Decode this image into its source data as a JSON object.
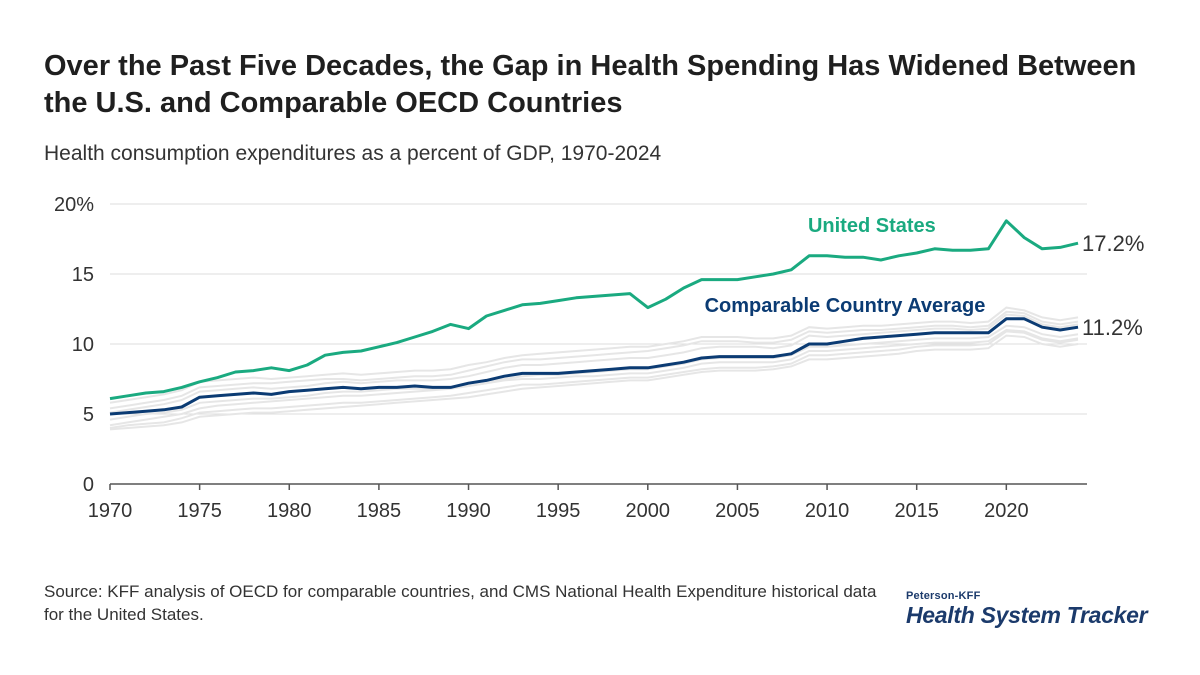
{
  "header": {
    "title": "Over the Past Five Decades, the Gap in Health Spending Has Widened Between the U.S. and Comparable OECD Countries",
    "subtitle": "Health consumption expenditures as a percent of GDP, 1970-2024"
  },
  "footer": {
    "source": "Source: KFF analysis of OECD for comparable countries, and CMS National Health Expenditure historical data for the United States.",
    "logo_top": "Peterson-KFF",
    "logo_main": "Health System Tracker"
  },
  "colors": {
    "us": "#1aaa80",
    "comparable": "#0b3b73",
    "background_lines": "#e6e6e6",
    "grid": "#dddddd",
    "axis": "#555555"
  },
  "chart_data": {
    "type": "line",
    "xlim": [
      1970,
      2024.5
    ],
    "ylim": [
      0,
      20
    ],
    "x_ticks": [
      1970,
      1975,
      1980,
      1985,
      1990,
      1995,
      2000,
      2005,
      2010,
      2015,
      2020
    ],
    "y_ticks": [
      0,
      5,
      10,
      15,
      20
    ],
    "y_tick_labels": [
      "0",
      "5",
      "10",
      "15",
      "20%"
    ],
    "grid": "horizontal",
    "x": [
      1970,
      1971,
      1972,
      1973,
      1974,
      1975,
      1976,
      1977,
      1978,
      1979,
      1980,
      1981,
      1982,
      1983,
      1984,
      1985,
      1986,
      1987,
      1988,
      1989,
      1990,
      1991,
      1992,
      1993,
      1994,
      1995,
      1996,
      1997,
      1998,
      1999,
      2000,
      2001,
      2002,
      2003,
      2004,
      2005,
      2006,
      2007,
      2008,
      2009,
      2010,
      2011,
      2012,
      2013,
      2014,
      2015,
      2016,
      2017,
      2018,
      2019,
      2020,
      2021,
      2022,
      2023,
      2024
    ],
    "series": [
      {
        "name": "United States",
        "end_label": "17.2%",
        "values": [
          6.1,
          6.3,
          6.5,
          6.6,
          6.9,
          7.3,
          7.6,
          8.0,
          8.1,
          8.3,
          8.1,
          8.5,
          9.2,
          9.4,
          9.5,
          9.8,
          10.1,
          10.5,
          10.9,
          11.4,
          11.1,
          12.0,
          12.4,
          12.8,
          12.9,
          13.1,
          13.3,
          13.4,
          13.5,
          13.6,
          12.6,
          13.2,
          14.0,
          14.6,
          14.6,
          14.6,
          14.8,
          15.0,
          15.3,
          16.3,
          16.3,
          16.2,
          16.2,
          16.0,
          16.3,
          16.5,
          16.8,
          16.7,
          16.7,
          16.8,
          18.8,
          17.6,
          16.8,
          16.9,
          17.2
        ]
      },
      {
        "name": "Comparable Country Average",
        "end_label": "11.2%",
        "values": [
          5.0,
          5.1,
          5.2,
          5.3,
          5.5,
          6.2,
          6.3,
          6.4,
          6.5,
          6.4,
          6.6,
          6.7,
          6.8,
          6.9,
          6.8,
          6.9,
          6.9,
          7.0,
          6.9,
          6.9,
          7.2,
          7.4,
          7.7,
          7.9,
          7.9,
          7.9,
          8.0,
          8.1,
          8.2,
          8.3,
          8.3,
          8.5,
          8.7,
          9.0,
          9.1,
          9.1,
          9.1,
          9.1,
          9.3,
          10.0,
          10.0,
          10.2,
          10.4,
          10.5,
          10.6,
          10.7,
          10.8,
          10.8,
          10.8,
          10.8,
          11.8,
          11.8,
          11.2,
          11.0,
          11.2
        ]
      }
    ],
    "background_series": [
      {
        "values": [
          4.2,
          4.4,
          4.6,
          4.8,
          5.0,
          5.4,
          5.6,
          5.7,
          5.8,
          5.9,
          6.0,
          6.1,
          6.2,
          6.3,
          6.3,
          6.4,
          6.5,
          6.6,
          6.7,
          6.8,
          7.0,
          7.2,
          7.5,
          7.7,
          7.8,
          7.8,
          7.9,
          8.0,
          8.1,
          8.2,
          8.2,
          8.4,
          8.6,
          8.9,
          9.0,
          9.0,
          9.0,
          9.0,
          9.2,
          9.8,
          9.8,
          9.9,
          10.0,
          10.1,
          10.2,
          10.3,
          10.4,
          10.4,
          10.4,
          10.5,
          11.3,
          11.2,
          10.7,
          10.5,
          10.7
        ]
      },
      {
        "values": [
          5.4,
          5.6,
          5.8,
          6.0,
          6.3,
          6.9,
          7.0,
          7.1,
          7.2,
          7.2,
          7.3,
          7.4,
          7.5,
          7.5,
          7.4,
          7.5,
          7.6,
          7.7,
          7.7,
          7.8,
          8.1,
          8.4,
          8.7,
          8.9,
          8.9,
          9.0,
          9.1,
          9.2,
          9.3,
          9.4,
          9.5,
          9.7,
          9.9,
          10.2,
          10.2,
          10.2,
          10.1,
          10.1,
          10.3,
          10.9,
          10.8,
          10.9,
          11.0,
          11.0,
          11.1,
          11.2,
          11.3,
          11.3,
          11.2,
          11.3,
          12.3,
          12.2,
          11.6,
          11.4,
          11.6
        ]
      },
      {
        "values": [
          4.6,
          4.8,
          5.0,
          5.1,
          5.3,
          5.8,
          5.9,
          6.0,
          6.1,
          6.1,
          6.2,
          6.3,
          6.5,
          6.6,
          6.6,
          6.7,
          6.8,
          6.8,
          6.8,
          6.9,
          7.0,
          7.2,
          7.4,
          7.5,
          7.5,
          7.6,
          7.7,
          7.7,
          7.8,
          7.9,
          7.9,
          8.1,
          8.3,
          8.6,
          8.7,
          8.7,
          8.7,
          8.7,
          8.9,
          9.5,
          9.5,
          9.6,
          9.7,
          9.8,
          9.9,
          10.0,
          10.1,
          10.1,
          10.1,
          10.2,
          11.0,
          10.9,
          10.4,
          10.2,
          10.4
        ]
      },
      {
        "values": [
          4.0,
          4.2,
          4.3,
          4.4,
          4.7,
          5.1,
          5.2,
          5.3,
          5.4,
          5.4,
          5.5,
          5.6,
          5.7,
          5.8,
          5.8,
          5.9,
          6.0,
          6.1,
          6.2,
          6.3,
          6.5,
          6.7,
          6.9,
          7.1,
          7.1,
          7.2,
          7.3,
          7.4,
          7.5,
          7.6,
          7.6,
          7.8,
          8.0,
          8.2,
          8.3,
          8.3,
          8.3,
          8.4,
          8.6,
          9.2,
          9.2,
          9.3,
          9.4,
          9.5,
          9.6,
          9.8,
          9.9,
          9.9,
          9.9,
          10.0,
          10.9,
          10.8,
          10.3,
          10.1,
          10.3
        ]
      },
      {
        "values": [
          5.8,
          6.0,
          6.2,
          6.4,
          6.7,
          7.3,
          7.4,
          7.5,
          7.6,
          7.5,
          7.6,
          7.7,
          7.8,
          7.9,
          7.8,
          7.9,
          8.0,
          8.1,
          8.1,
          8.2,
          8.5,
          8.7,
          9.0,
          9.2,
          9.3,
          9.4,
          9.5,
          9.6,
          9.7,
          9.8,
          9.8,
          10.0,
          10.2,
          10.5,
          10.5,
          10.5,
          10.4,
          10.4,
          10.6,
          11.2,
          11.1,
          11.2,
          11.3,
          11.3,
          11.4,
          11.5,
          11.6,
          11.6,
          11.5,
          11.6,
          12.6,
          12.4,
          11.9,
          11.7,
          11.9
        ]
      },
      {
        "values": [
          3.9,
          4.0,
          4.1,
          4.2,
          4.4,
          4.8,
          4.9,
          5.0,
          5.1,
          5.1,
          5.2,
          5.3,
          5.4,
          5.5,
          5.6,
          5.7,
          5.8,
          5.9,
          6.0,
          6.1,
          6.2,
          6.4,
          6.6,
          6.8,
          6.9,
          7.0,
          7.1,
          7.2,
          7.3,
          7.4,
          7.4,
          7.6,
          7.8,
          8.0,
          8.1,
          8.1,
          8.1,
          8.2,
          8.4,
          8.9,
          8.9,
          9.0,
          9.1,
          9.2,
          9.3,
          9.5,
          9.6,
          9.6,
          9.6,
          9.7,
          10.6,
          10.5,
          10.0,
          9.8,
          10.0
        ]
      },
      {
        "values": [
          5.1,
          5.3,
          5.5,
          5.7,
          6.0,
          6.6,
          6.7,
          6.8,
          6.9,
          6.8,
          6.9,
          7.0,
          7.2,
          7.3,
          7.2,
          7.3,
          7.4,
          7.4,
          7.4,
          7.5,
          7.7,
          8.0,
          8.3,
          8.5,
          8.5,
          8.6,
          8.7,
          8.8,
          8.9,
          9.0,
          9.0,
          9.2,
          9.4,
          9.7,
          9.8,
          9.8,
          9.8,
          9.7,
          9.9,
          10.6,
          10.5,
          10.6,
          10.7,
          10.8,
          10.9,
          11.0,
          11.1,
          11.1,
          11.0,
          11.1,
          12.1,
          12.0,
          11.4,
          11.2,
          11.4
        ]
      }
    ],
    "series_labels": [
      {
        "text": "United States",
        "x": 2012.5,
        "y": 18.0
      },
      {
        "text": "Comparable Country Average",
        "x": 2011.0,
        "y": 12.3
      }
    ]
  }
}
